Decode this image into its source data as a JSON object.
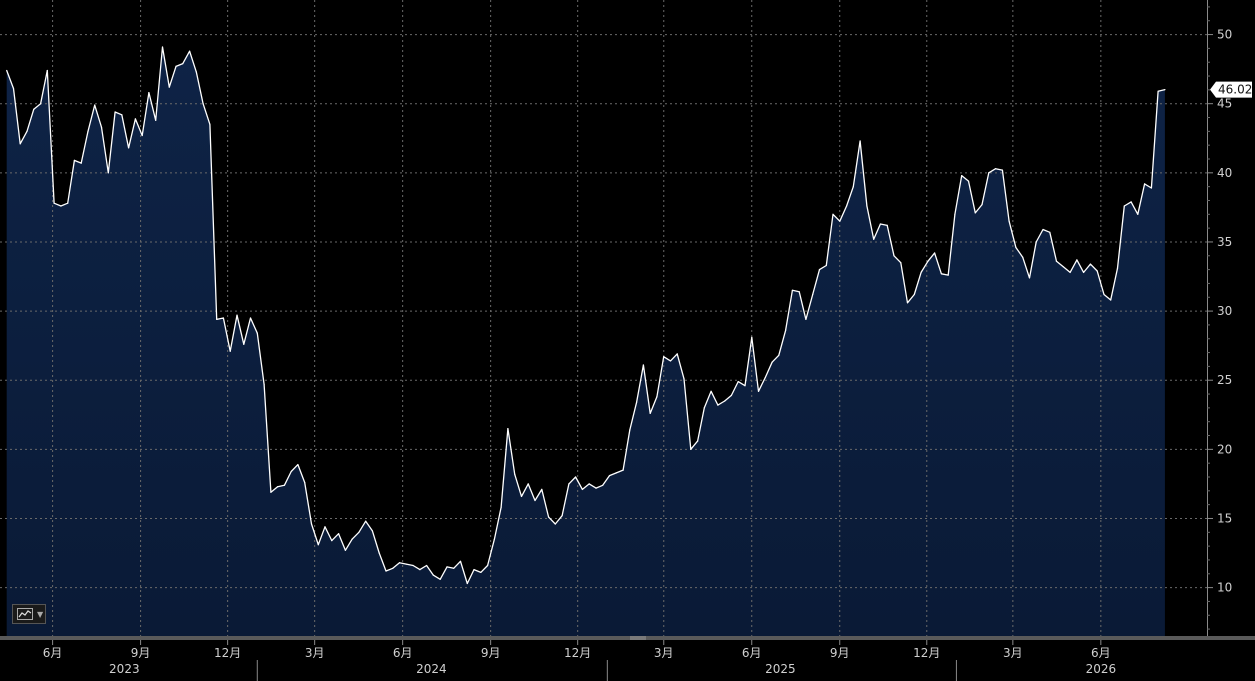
{
  "chart_data": {
    "type": "area",
    "title": "",
    "xlabel": "",
    "ylabel": "",
    "ylim": [
      6.5,
      52.5
    ],
    "yticks": [
      10,
      15,
      20,
      25,
      30,
      35,
      40,
      45,
      50
    ],
    "grid": true,
    "x_start": "2023-04-14",
    "x_end": "2026-08-07",
    "xlim": [
      "2023-04-07",
      "2026-09-20"
    ],
    "month_ticks": [
      {
        "date": "2023-06-01",
        "label": "6月"
      },
      {
        "date": "2023-09-01",
        "label": "9月"
      },
      {
        "date": "2023-12-01",
        "label": "12月"
      },
      {
        "date": "2024-03-01",
        "label": "3月"
      },
      {
        "date": "2024-06-01",
        "label": "6月"
      },
      {
        "date": "2024-09-01",
        "label": "9月"
      },
      {
        "date": "2024-12-01",
        "label": "12月"
      },
      {
        "date": "2025-03-01",
        "label": "3月"
      },
      {
        "date": "2025-06-01",
        "label": "6月"
      },
      {
        "date": "2025-09-01",
        "label": "9月"
      },
      {
        "date": "2025-12-01",
        "label": "12月"
      },
      {
        "date": "2026-03-01",
        "label": "3月"
      },
      {
        "date": "2026-06-01",
        "label": "6月"
      }
    ],
    "year_labels": [
      {
        "label": "2023",
        "date": "2023-08-15"
      },
      {
        "label": "2024",
        "date": "2024-07-01"
      },
      {
        "label": "2025",
        "date": "2025-07-01"
      },
      {
        "label": "2026",
        "date": "2026-06-01"
      }
    ],
    "year_dividers": [
      "2024-01-01",
      "2025-01-01",
      "2026-01-01"
    ],
    "last_value_label": "46.02",
    "values": [
      47.4,
      46.1,
      42.1,
      43.0,
      44.6,
      45.0,
      47.4,
      37.8,
      37.6,
      37.8,
      40.9,
      40.7,
      43.0,
      44.9,
      43.3,
      40.0,
      44.4,
      44.2,
      41.8,
      43.9,
      42.7,
      45.8,
      43.8,
      49.1,
      46.2,
      47.7,
      47.9,
      48.8,
      47.3,
      45.0,
      43.5,
      29.4,
      29.5,
      27.1,
      29.7,
      27.6,
      29.5,
      28.4,
      24.7,
      16.9,
      17.3,
      17.4,
      18.4,
      18.9,
      17.6,
      14.6,
      13.1,
      14.4,
      13.4,
      13.9,
      12.7,
      13.5,
      14.0,
      14.8,
      14.1,
      12.5,
      11.2,
      11.4,
      11.8,
      11.7,
      11.6,
      11.3,
      11.6,
      10.9,
      10.6,
      11.5,
      11.4,
      11.9,
      10.3,
      11.3,
      11.1,
      11.6,
      13.5,
      15.8,
      21.5,
      18.2,
      16.6,
      17.5,
      16.3,
      17.1,
      15.1,
      14.6,
      15.2,
      17.5,
      18.0,
      17.1,
      17.5,
      17.2,
      17.4,
      18.1,
      18.3,
      18.5,
      21.4,
      23.4,
      26.1,
      22.6,
      23.8,
      26.7,
      26.4,
      26.9,
      25.1,
      20.0,
      20.6,
      23.0,
      24.2,
      23.2,
      23.5,
      23.9,
      24.9,
      24.6,
      28.1,
      24.2,
      25.2,
      26.3,
      26.8,
      28.6,
      31.5,
      31.4,
      29.4,
      31.2,
      33.0,
      33.3,
      37.0,
      36.5,
      37.6,
      39.0,
      42.3,
      37.6,
      35.2,
      36.3,
      36.2,
      34.0,
      33.5,
      30.6,
      31.2,
      32.8,
      33.6,
      34.2,
      32.7,
      32.6,
      37.0,
      39.8,
      39.4,
      37.1,
      37.7,
      40.0,
      40.3,
      40.2,
      36.5,
      34.6,
      33.9,
      32.4,
      35.0,
      35.9,
      35.7,
      33.6,
      33.2,
      32.8,
      33.7,
      32.8,
      33.4,
      32.9,
      31.2,
      30.8,
      33.1,
      37.6,
      37.9,
      37.0,
      39.2,
      38.9,
      45.9,
      46.02
    ]
  },
  "toolbar": {
    "chart_type_icon": "line-chart-icon",
    "dropdown_icon": "caret-down-icon"
  },
  "colors": {
    "background": "#000000",
    "area_fill": "#0c1e3d",
    "line": "#ffffff",
    "grid": "#6a6a6a",
    "tick_text": "#d0d0d0",
    "last_label_bg": "#ffffff"
  }
}
